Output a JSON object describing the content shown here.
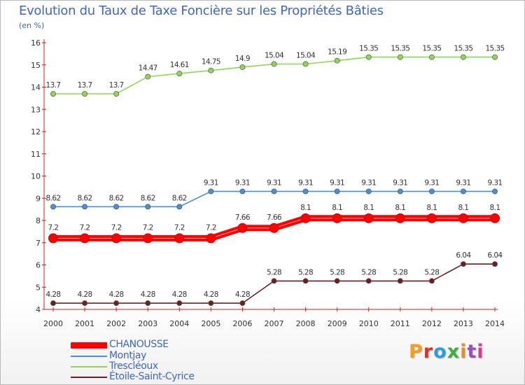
{
  "title": "Evolution du Taux de Taxe Foncière sur les Propriétés Bâties",
  "subtitle": "(en %)",
  "logo": {
    "text": "Proxiti",
    "colors": [
      "#f0a020",
      "#e0302a",
      "#2f9be0",
      "#3fae3f",
      "#f08a24",
      "#9a4fc0",
      "#d63b8c"
    ]
  },
  "chart_data": {
    "type": "line",
    "title": "Evolution du Taux de Taxe Foncière sur les Propriétés Bâties",
    "ylabel": "(en %)",
    "xlabel": "",
    "x": [
      "2000",
      "2001",
      "2002",
      "2003",
      "2004",
      "2005",
      "2006",
      "2007",
      "2008",
      "2009",
      "2010",
      "2011",
      "2012",
      "2013",
      "2014"
    ],
    "ylim": [
      4,
      16
    ],
    "yticks": [
      "4",
      "5",
      "6",
      "7",
      "8",
      "9",
      "10",
      "11",
      "12",
      "13",
      "14",
      "15",
      "16"
    ],
    "grid": false,
    "legend": "bottom-left",
    "series": [
      {
        "name": "CHANOUSSE",
        "color": "#ff0000",
        "emphasis": true,
        "values": [
          7.2,
          7.2,
          7.2,
          7.2,
          7.2,
          7.2,
          7.66,
          7.66,
          8.1,
          8.1,
          8.1,
          8.1,
          8.1,
          8.1,
          8.1
        ],
        "labels": [
          "7.2",
          "7.2",
          "7.2",
          "7.2",
          "7.2",
          "7.2",
          "7.66",
          "7.66",
          "8.1",
          "8.1",
          "8.1",
          "8.1",
          "8.1",
          "8.1",
          "8.1"
        ]
      },
      {
        "name": "Montjay",
        "color": "#4a8fd8",
        "emphasis": false,
        "values": [
          8.62,
          8.62,
          8.62,
          8.62,
          8.62,
          9.31,
          9.31,
          9.31,
          9.31,
          9.31,
          9.31,
          9.31,
          9.31,
          9.31,
          9.31
        ],
        "labels": [
          "8.62",
          "8.62",
          "8.62",
          "8.62",
          "8.62",
          "9.31",
          "9.31",
          "9.31",
          "9.31",
          "9.31",
          "9.31",
          "9.31",
          "9.31",
          "9.31",
          "9.31"
        ]
      },
      {
        "name": "Trescléoux",
        "color": "#8fd656",
        "emphasis": false,
        "values": [
          13.7,
          13.7,
          13.7,
          14.47,
          14.61,
          14.75,
          14.9,
          15.04,
          15.04,
          15.19,
          15.35,
          15.35,
          15.35,
          15.35,
          15.35
        ],
        "labels": [
          "13.7",
          "13.7",
          "13.7",
          "14.47",
          "14.61",
          "14.75",
          "14.9",
          "15.04",
          "15.04",
          "15.19",
          "15.35",
          "15.35",
          "15.35",
          "15.35",
          "15.35"
        ]
      },
      {
        "name": "Étoile-Saint-Cyrice",
        "color": "#6b1f24",
        "emphasis": false,
        "values": [
          4.28,
          4.28,
          4.28,
          4.28,
          4.28,
          4.28,
          4.28,
          5.28,
          5.28,
          5.28,
          5.28,
          5.28,
          5.28,
          6.04,
          6.04
        ],
        "labels": [
          "4.28",
          "4.28",
          "4.28",
          "4.28",
          "4.28",
          "4.28",
          "4.28",
          "5.28",
          "5.28",
          "5.28",
          "5.28",
          "5.28",
          "5.28",
          "6.04",
          "6.04"
        ]
      }
    ]
  }
}
